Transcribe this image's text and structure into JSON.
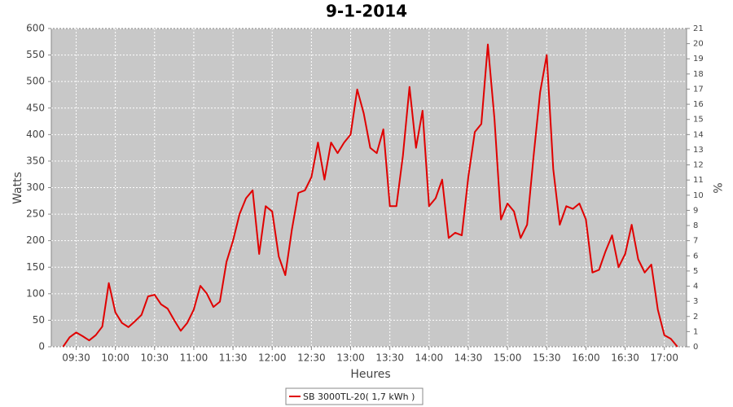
{
  "chart_data": {
    "type": "line",
    "title": "9-1-2014",
    "x_label": "Heures",
    "y_label": "Watts",
    "y2_label": "%",
    "x": [
      "09:20",
      "09:25",
      "09:30",
      "09:35",
      "09:40",
      "09:45",
      "09:50",
      "09:55",
      "10:00",
      "10:05",
      "10:10",
      "10:15",
      "10:20",
      "10:25",
      "10:30",
      "10:35",
      "10:40",
      "10:45",
      "10:50",
      "10:55",
      "11:00",
      "11:05",
      "11:10",
      "11:15",
      "11:20",
      "11:25",
      "11:30",
      "11:35",
      "11:40",
      "11:45",
      "11:50",
      "11:55",
      "12:00",
      "12:05",
      "12:10",
      "12:15",
      "12:20",
      "12:25",
      "12:30",
      "12:35",
      "12:40",
      "12:45",
      "12:50",
      "12:55",
      "13:00",
      "13:05",
      "13:10",
      "13:15",
      "13:20",
      "13:25",
      "13:30",
      "13:35",
      "13:40",
      "13:45",
      "13:50",
      "13:55",
      "14:00",
      "14:05",
      "14:10",
      "14:15",
      "14:20",
      "14:25",
      "14:30",
      "14:35",
      "14:40",
      "14:45",
      "14:50",
      "14:55",
      "15:00",
      "15:05",
      "15:10",
      "15:15",
      "15:20",
      "15:25",
      "15:30",
      "15:35",
      "15:40",
      "15:45",
      "15:50",
      "15:55",
      "16:00",
      "16:05",
      "16:10",
      "16:15",
      "16:20",
      "16:25",
      "16:30",
      "16:35",
      "16:40",
      "16:45",
      "16:50",
      "16:55",
      "17:00",
      "17:05",
      "17:10"
    ],
    "series": [
      {
        "name": "SB 3000TL-20( 1,7 kWh )",
        "color": "#e00000",
        "values": [
          0,
          18,
          27,
          20,
          12,
          22,
          38,
          120,
          65,
          45,
          37,
          48,
          60,
          95,
          98,
          80,
          72,
          50,
          30,
          45,
          70,
          115,
          100,
          75,
          85,
          160,
          200,
          250,
          280,
          295,
          175,
          265,
          255,
          170,
          135,
          220,
          290,
          295,
          320,
          385,
          315,
          385,
          365,
          385,
          400,
          485,
          440,
          375,
          365,
          410,
          265,
          265,
          360,
          490,
          375,
          445,
          265,
          280,
          315,
          205,
          215,
          210,
          320,
          405,
          420,
          570,
          430,
          240,
          270,
          255,
          205,
          230,
          360,
          480,
          550,
          335,
          230,
          265,
          260,
          270,
          240,
          140,
          145,
          180,
          210,
          150,
          175,
          230,
          165,
          140,
          155,
          70,
          22,
          15,
          0
        ]
      }
    ],
    "xlim": [
      "09:11",
      "17:17"
    ],
    "xticks": [
      "09:30",
      "10:00",
      "10:30",
      "11:00",
      "11:30",
      "12:00",
      "12:30",
      "13:00",
      "13:30",
      "14:00",
      "14:30",
      "15:00",
      "15:30",
      "16:00",
      "16:30",
      "17:00"
    ],
    "ylim": [
      0,
      600
    ],
    "yticks": [
      0,
      50,
      100,
      150,
      200,
      250,
      300,
      350,
      400,
      450,
      500,
      550,
      600
    ],
    "y2lim": [
      0,
      21
    ],
    "y2ticks": [
      0,
      1,
      2,
      3,
      4,
      5,
      6,
      7,
      8,
      9,
      10,
      11,
      12,
      13,
      14,
      15,
      16,
      17,
      18,
      19,
      20,
      21
    ],
    "grid": true,
    "legend": "bottom"
  }
}
